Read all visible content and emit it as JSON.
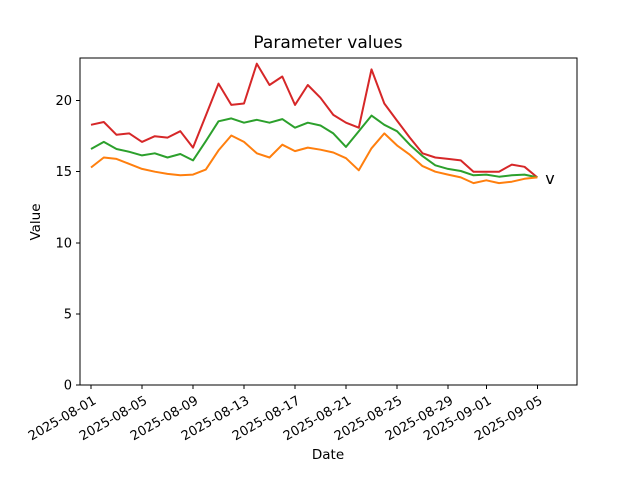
{
  "figure": {
    "title": "Parameter values",
    "xlabel": "Date",
    "ylabel": "Value"
  },
  "colors": {
    "background": "#ffffff",
    "axis": "#000000",
    "red_series": "#d62728",
    "green_series": "#2ca02c",
    "orange_series": "#ff7f0e",
    "annotation_blue": "#1f77b4"
  },
  "chart_data": {
    "type": "line",
    "title": "Parameter values",
    "xlabel": "Date",
    "ylabel": "Value",
    "grid": false,
    "legend": false,
    "ylim": [
      0,
      23
    ],
    "y_ticks": [
      0,
      5,
      10,
      15,
      20
    ],
    "x_tick_labels": [
      "2025-08-01",
      "2025-08-05",
      "2025-08-09",
      "2025-08-13",
      "2025-08-17",
      "2025-08-21",
      "2025-08-25",
      "2025-08-29",
      "2025-09-01",
      "2025-09-05"
    ],
    "x_dates": [
      "2025-08-01",
      "2025-08-02",
      "2025-08-03",
      "2025-08-04",
      "2025-08-05",
      "2025-08-06",
      "2025-08-07",
      "2025-08-08",
      "2025-08-09",
      "2025-08-10",
      "2025-08-11",
      "2025-08-12",
      "2025-08-13",
      "2025-08-14",
      "2025-08-15",
      "2025-08-16",
      "2025-08-17",
      "2025-08-18",
      "2025-08-19",
      "2025-08-20",
      "2025-08-21",
      "2025-08-22",
      "2025-08-23",
      "2025-08-24",
      "2025-08-25",
      "2025-08-26",
      "2025-08-27",
      "2025-08-28",
      "2025-08-29",
      "2025-08-30",
      "2025-08-31",
      "2025-09-01",
      "2025-09-02",
      "2025-09-03",
      "2025-09-04",
      "2025-09-05"
    ],
    "series": [
      {
        "name": "red",
        "color": "#d62728",
        "values": [
          18.3,
          18.5,
          17.6,
          17.7,
          17.1,
          17.5,
          17.4,
          17.85,
          16.7,
          18.95,
          21.2,
          19.7,
          19.8,
          22.6,
          21.1,
          21.7,
          19.7,
          21.1,
          20.2,
          19.0,
          18.45,
          18.1,
          22.2,
          19.8,
          18.6,
          17.4,
          16.3,
          16.0,
          15.9,
          15.8,
          15.0,
          15.0,
          15.0,
          15.5,
          15.35,
          14.6
        ]
      },
      {
        "name": "green",
        "color": "#2ca02c",
        "values": [
          16.6,
          17.1,
          16.6,
          16.4,
          16.15,
          16.3,
          16.0,
          16.25,
          15.8,
          17.15,
          18.55,
          18.75,
          18.45,
          18.65,
          18.45,
          18.7,
          18.1,
          18.45,
          18.25,
          17.7,
          16.75,
          17.85,
          18.95,
          18.3,
          17.85,
          16.9,
          16.1,
          15.45,
          15.2,
          15.05,
          14.75,
          14.8,
          14.65,
          14.75,
          14.8,
          14.6
        ]
      },
      {
        "name": "orange",
        "color": "#ff7f0e",
        "values": [
          15.3,
          16.0,
          15.9,
          15.55,
          15.2,
          15.0,
          14.85,
          14.75,
          14.8,
          15.15,
          16.5,
          17.55,
          17.1,
          16.3,
          16.0,
          16.9,
          16.45,
          16.7,
          16.55,
          16.35,
          15.95,
          15.1,
          16.65,
          17.7,
          16.85,
          16.2,
          15.4,
          15.0,
          14.8,
          14.6,
          14.2,
          14.4,
          14.2,
          14.3,
          14.5,
          14.6
        ]
      }
    ],
    "annotation": {
      "text": "v",
      "color": "#1f77b4",
      "date": "2025-09-06",
      "value": 14.55
    }
  }
}
